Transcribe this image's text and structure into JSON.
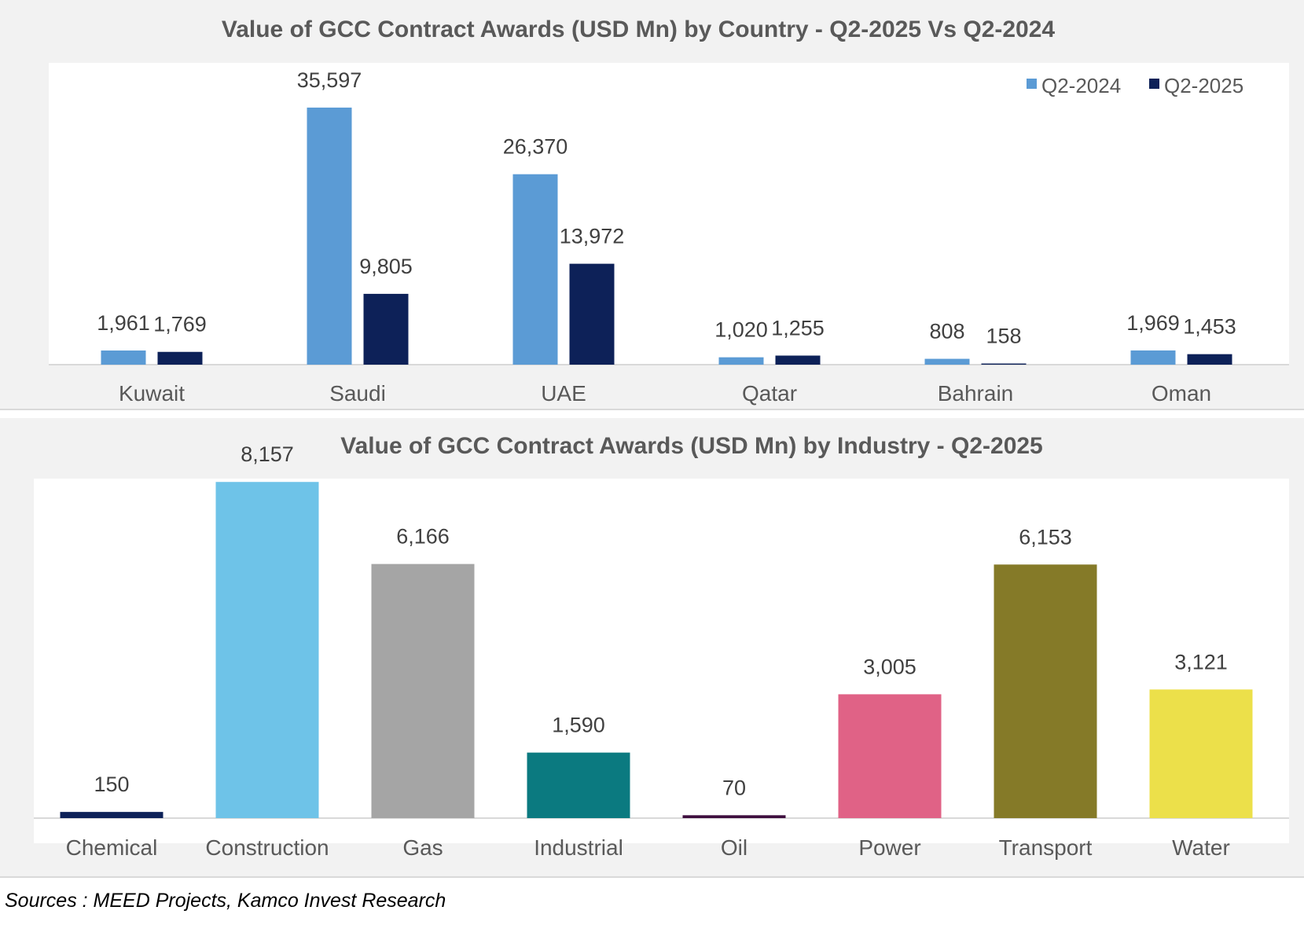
{
  "chart_data": [
    {
      "type": "bar",
      "title": "Value of GCC Contract Awards (USD Mn) by Country - Q2-2025 Vs Q2-2024",
      "categories": [
        "Kuwait",
        "Saudi",
        "UAE",
        "Qatar",
        "Bahrain",
        "Oman"
      ],
      "series": [
        {
          "name": "Q2-2024",
          "color": "#5b9bd5",
          "values": [
            1961,
            35597,
            26370,
            1020,
            808,
            1969
          ],
          "labels": [
            "1,961",
            "35,597",
            "26,370",
            "1,020",
            "808",
            "1,969"
          ]
        },
        {
          "name": "Q2-2025",
          "color": "#0d2158",
          "values": [
            1769,
            9805,
            13972,
            1255,
            158,
            1453
          ],
          "labels": [
            "1,769",
            "9,805",
            "13,972",
            "1,255",
            "158",
            "1,453"
          ]
        }
      ],
      "ylim": [
        0,
        37000
      ],
      "grid": false,
      "legend_position": "top-right"
    },
    {
      "type": "bar",
      "title": "Value of GCC Contract Awards (USD Mn) by Industry - Q2-2025",
      "categories": [
        "Chemical",
        "Construction",
        "Gas",
        "Industrial",
        "Oil",
        "Power",
        "Transport",
        "Water"
      ],
      "values": [
        150,
        8157,
        6166,
        1590,
        70,
        3005,
        6153,
        3121
      ],
      "labels": [
        "150",
        "8,157",
        "6,166",
        "1,590",
        "70",
        "3,005",
        "6,153",
        "3,121"
      ],
      "colors": [
        "#0d2158",
        "#6ec3e8",
        "#a5a5a5",
        "#0b7a80",
        "#3f0f3f",
        "#e06286",
        "#857a28",
        "#ece04a"
      ],
      "ylim": [
        0,
        8600
      ],
      "grid": false
    }
  ],
  "source": "Sources : MEED Projects, Kamco Invest Research"
}
